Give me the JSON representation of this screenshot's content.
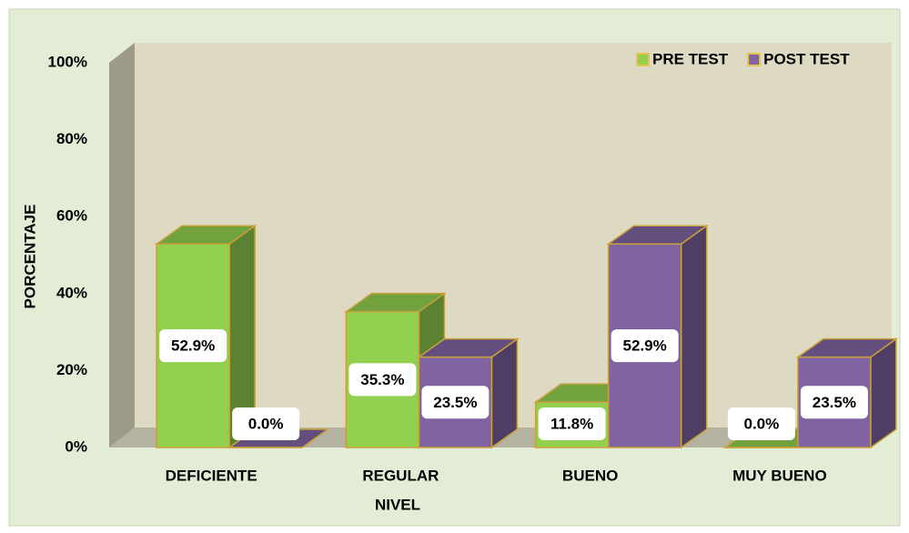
{
  "chart_data": {
    "type": "bar3d",
    "categories": [
      "DEFICIENTE",
      "REGULAR",
      "BUENO",
      "MUY BUENO"
    ],
    "x_label": "NIVEL",
    "y_label": "PORCENTAJE",
    "series": [
      {
        "name": "PRE TEST",
        "color": "#92d050",
        "values": [
          52.9,
          35.3,
          11.8,
          0.0
        ],
        "value_labels": [
          "52.9%",
          "35.3%",
          "11.8%",
          "0.0%"
        ]
      },
      {
        "name": "POST TEST",
        "color": "#8064a2",
        "values": [
          0.0,
          23.5,
          52.9,
          23.5
        ],
        "value_labels": [
          "0.0%",
          "23.5%",
          "52.9%",
          "23.5%"
        ]
      }
    ],
    "ylim": [
      0,
      100
    ],
    "yticks": [
      {
        "value": 0,
        "label": "0%"
      },
      {
        "value": 20,
        "label": "20%"
      },
      {
        "value": 40,
        "label": "40%"
      },
      {
        "value": 60,
        "label": "60%"
      },
      {
        "value": 80,
        "label": "80%"
      },
      {
        "value": 100,
        "label": "100%"
      }
    ],
    "legend": "top-right"
  }
}
